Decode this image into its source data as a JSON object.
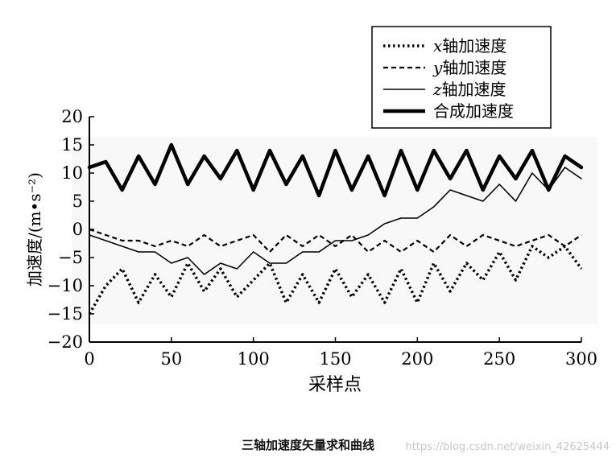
{
  "chart_data": {
    "type": "line",
    "title": "",
    "xlabel": "采样点",
    "ylabel": "加速度/(m•s⁻²)",
    "xlim": [
      0,
      300
    ],
    "ylim": [
      -20,
      20
    ],
    "xticks": [
      0,
      50,
      100,
      150,
      200,
      250,
      300
    ],
    "yticks": [
      20,
      15,
      10,
      5,
      0,
      -5,
      -10,
      -15,
      -20
    ],
    "xtick_labels": [
      "0",
      "50",
      "100",
      "150",
      "200",
      "250",
      "300"
    ],
    "ytick_labels": [
      "20",
      "15",
      "10",
      "5",
      "0",
      "−5",
      "−10",
      "−15",
      "−20"
    ],
    "grid": false,
    "legend": "top-right",
    "x": [
      0,
      10,
      20,
      30,
      40,
      50,
      60,
      70,
      80,
      90,
      100,
      110,
      120,
      130,
      140,
      150,
      160,
      170,
      180,
      190,
      200,
      210,
      220,
      230,
      240,
      250,
      260,
      270,
      280,
      290,
      300
    ],
    "series": [
      {
        "name_prefix": "x",
        "name": "轴加速度",
        "style": "dotted",
        "values": [
          -15,
          -10,
          -7,
          -13,
          -8,
          -12,
          -6,
          -11,
          -7,
          -12,
          -9,
          -6,
          -13,
          -8,
          -13,
          -7,
          -12,
          -8,
          -13,
          -7,
          -13,
          -6,
          -11,
          -6,
          -9,
          -4,
          -9,
          -3,
          -5,
          -3,
          -7
        ]
      },
      {
        "name_prefix": "y",
        "name": "轴加速度",
        "style": "dashed",
        "values": [
          0,
          -1,
          -2,
          -2,
          -3,
          -2,
          -3,
          -1,
          -3,
          -2,
          -1,
          -4,
          -1,
          -3,
          -1,
          -3,
          -1,
          -4,
          -2,
          -4,
          -2,
          -4,
          -1,
          -3,
          -1,
          -2,
          -3,
          -2,
          -1,
          -3,
          -1
        ]
      },
      {
        "name_prefix": "z",
        "name": "轴加速度",
        "style": "solid-thin",
        "values": [
          -1,
          -2,
          -3,
          -4,
          -4,
          -6,
          -5,
          -8,
          -6,
          -7,
          -4,
          -6,
          -6,
          -4,
          -4,
          -2,
          -2,
          -1,
          1,
          2,
          2,
          4,
          7,
          6,
          5,
          8,
          5,
          10,
          7,
          11,
          9
        ]
      },
      {
        "name_prefix": "",
        "name": "合成加速度",
        "style": "solid-thick",
        "values": [
          11,
          12,
          7,
          13,
          8,
          15,
          8,
          13,
          9,
          14,
          7,
          14,
          8,
          13,
          6,
          14,
          7,
          13,
          6,
          14,
          7,
          14,
          9,
          14,
          7,
          13,
          9,
          14,
          7,
          13,
          11
        ]
      }
    ]
  },
  "caption": "三轴加速度矢量求和曲线",
  "watermark": "https://blog.csdn.net/weixin_42625444"
}
